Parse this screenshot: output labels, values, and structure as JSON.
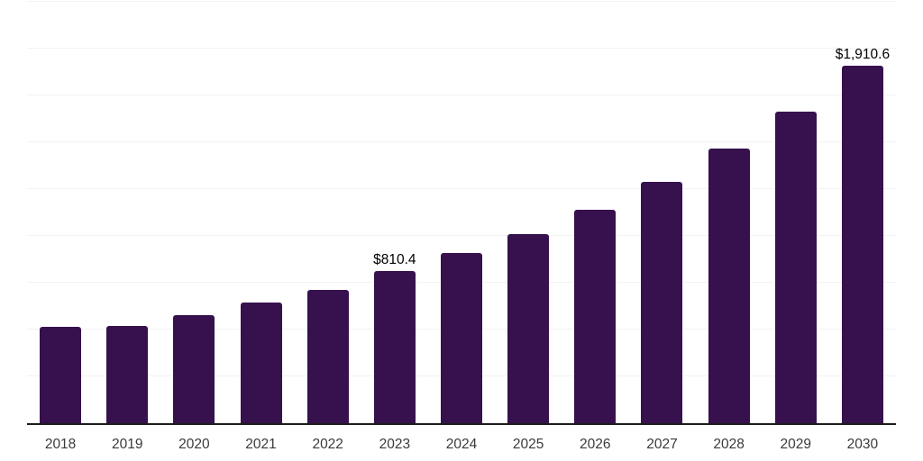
{
  "chart_data": {
    "type": "bar",
    "title": "",
    "xlabel": "",
    "ylabel": "",
    "categories": [
      "2018",
      "2019",
      "2020",
      "2021",
      "2022",
      "2023",
      "2024",
      "2025",
      "2026",
      "2027",
      "2028",
      "2029",
      "2030"
    ],
    "values": [
      516,
      520,
      575,
      645,
      713,
      810.4,
      910,
      1011,
      1140,
      1288,
      1466,
      1665,
      1910.6
    ],
    "data_labels": [
      "",
      "",
      "",
      "",
      "",
      "$810.4",
      "",
      "",
      "",
      "",
      "",
      "",
      "$1,910.6"
    ],
    "ylim": [
      0,
      2250
    ],
    "grid_step": 250,
    "grid": "horizontal gridlines only, y-axis tick labels hidden",
    "legend": "none",
    "colors": {
      "bar": "#36114e",
      "gridline": "#f2f2f2",
      "axis_line": "#1c1c1c",
      "tick_label": "#3a3a3a",
      "data_label": "#000000",
      "background": "#ffffff"
    }
  }
}
